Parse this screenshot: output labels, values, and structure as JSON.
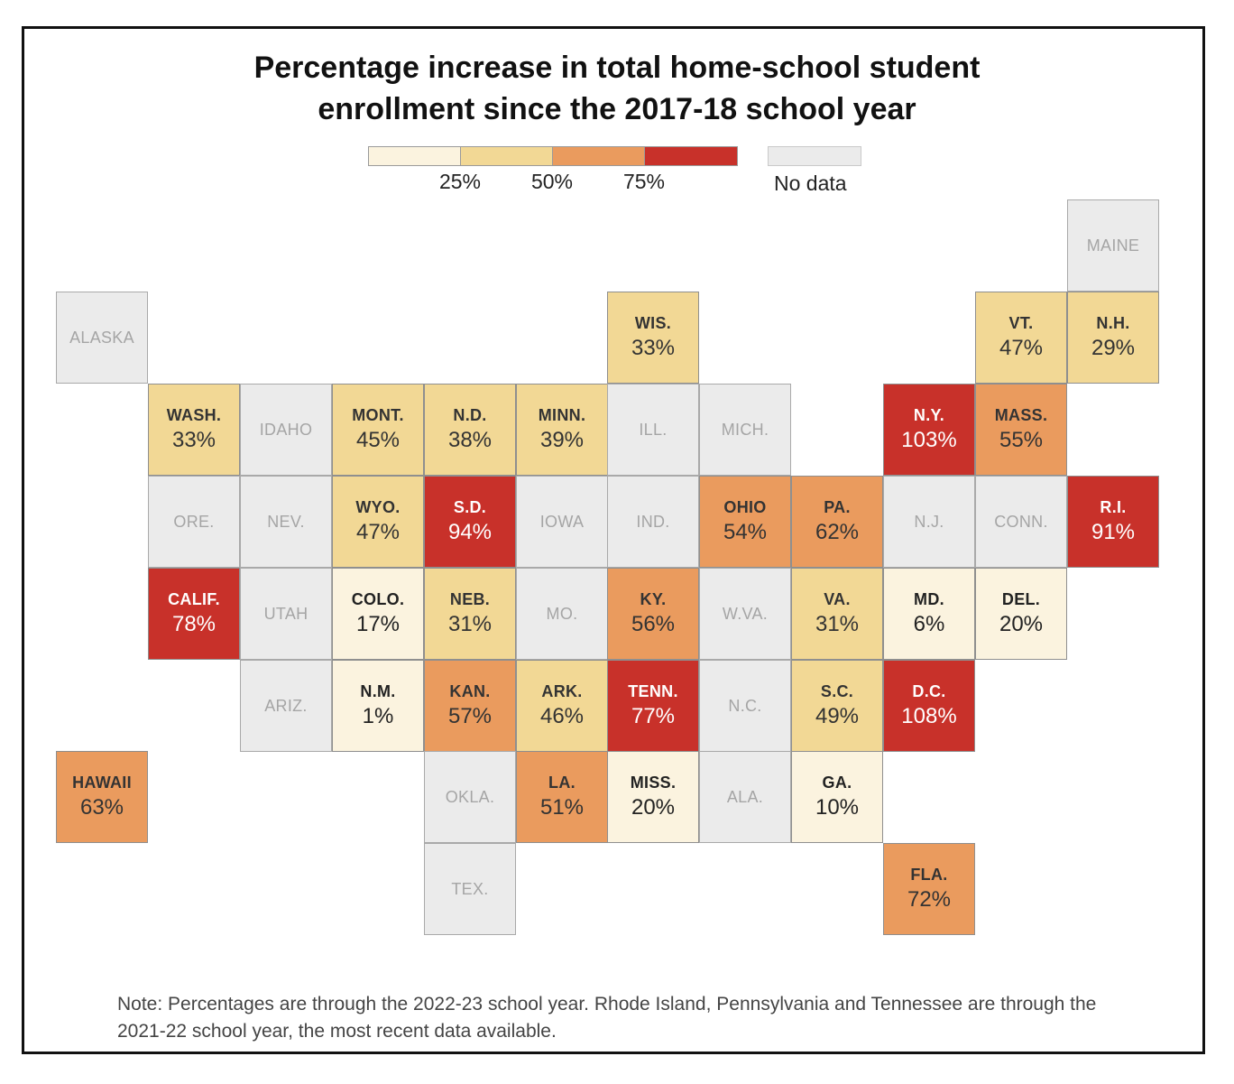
{
  "title_lines": [
    "Percentage increase in total home-school student",
    "enrollment since the 2017-18 school year"
  ],
  "legend": {
    "bins": [
      {
        "color": "#fbf3df"
      },
      {
        "color": "#f2d895"
      },
      {
        "color": "#ea9b5e"
      },
      {
        "color": "#c8312a"
      }
    ],
    "ticks": [
      "25%",
      "50%",
      "75%"
    ],
    "nodata_label": "No data",
    "nodata_color": "#ebebeb"
  },
  "states": [
    {
      "name": "ALASKA",
      "value": null,
      "col": 0,
      "row": 1
    },
    {
      "name": "MAINE",
      "value": null,
      "col": 11,
      "row": 0
    },
    {
      "name": "WIS.",
      "value": 33,
      "col": 6,
      "row": 1
    },
    {
      "name": "VT.",
      "value": 47,
      "col": 10,
      "row": 1
    },
    {
      "name": "N.H.",
      "value": 29,
      "col": 11,
      "row": 1
    },
    {
      "name": "WASH.",
      "value": 33,
      "col": 1,
      "row": 2
    },
    {
      "name": "IDAHO",
      "value": null,
      "col": 2,
      "row": 2
    },
    {
      "name": "MONT.",
      "value": 45,
      "col": 3,
      "row": 2
    },
    {
      "name": "N.D.",
      "value": 38,
      "col": 4,
      "row": 2
    },
    {
      "name": "MINN.",
      "value": 39,
      "col": 5,
      "row": 2
    },
    {
      "name": "ILL.",
      "value": null,
      "col": 6,
      "row": 2
    },
    {
      "name": "MICH.",
      "value": null,
      "col": 7,
      "row": 2
    },
    {
      "name": "N.Y.",
      "value": 103,
      "col": 9,
      "row": 2
    },
    {
      "name": "MASS.",
      "value": 55,
      "col": 10,
      "row": 2
    },
    {
      "name": "ORE.",
      "value": null,
      "col": 1,
      "row": 3
    },
    {
      "name": "NEV.",
      "value": null,
      "col": 2,
      "row": 3
    },
    {
      "name": "WYO.",
      "value": 47,
      "col": 3,
      "row": 3
    },
    {
      "name": "S.D.",
      "value": 94,
      "col": 4,
      "row": 3
    },
    {
      "name": "IOWA",
      "value": null,
      "col": 5,
      "row": 3
    },
    {
      "name": "IND.",
      "value": null,
      "col": 6,
      "row": 3
    },
    {
      "name": "OHIO",
      "value": 54,
      "col": 7,
      "row": 3
    },
    {
      "name": "PA.",
      "value": 62,
      "col": 8,
      "row": 3
    },
    {
      "name": "N.J.",
      "value": null,
      "col": 9,
      "row": 3
    },
    {
      "name": "CONN.",
      "value": null,
      "col": 10,
      "row": 3
    },
    {
      "name": "R.I.",
      "value": 91,
      "col": 11,
      "row": 3
    },
    {
      "name": "CALIF.",
      "value": 78,
      "col": 1,
      "row": 4
    },
    {
      "name": "UTAH",
      "value": null,
      "col": 2,
      "row": 4
    },
    {
      "name": "COLO.",
      "value": 17,
      "col": 3,
      "row": 4
    },
    {
      "name": "NEB.",
      "value": 31,
      "col": 4,
      "row": 4
    },
    {
      "name": "MO.",
      "value": null,
      "col": 5,
      "row": 4
    },
    {
      "name": "KY.",
      "value": 56,
      "col": 6,
      "row": 4
    },
    {
      "name": "W.VA.",
      "value": null,
      "col": 7,
      "row": 4
    },
    {
      "name": "VA.",
      "value": 31,
      "col": 8,
      "row": 4
    },
    {
      "name": "MD.",
      "value": 6,
      "col": 9,
      "row": 4
    },
    {
      "name": "DEL.",
      "value": 20,
      "col": 10,
      "row": 4
    },
    {
      "name": "ARIZ.",
      "value": null,
      "col": 2,
      "row": 5
    },
    {
      "name": "N.M.",
      "value": 1,
      "col": 3,
      "row": 5
    },
    {
      "name": "KAN.",
      "value": 57,
      "col": 4,
      "row": 5
    },
    {
      "name": "ARK.",
      "value": 46,
      "col": 5,
      "row": 5
    },
    {
      "name": "TENN.",
      "value": 77,
      "col": 6,
      "row": 5
    },
    {
      "name": "N.C.",
      "value": null,
      "col": 7,
      "row": 5
    },
    {
      "name": "S.C.",
      "value": 49,
      "col": 8,
      "row": 5
    },
    {
      "name": "D.C.",
      "value": 108,
      "col": 9,
      "row": 5
    },
    {
      "name": "HAWAII",
      "value": 63,
      "col": 0,
      "row": 6
    },
    {
      "name": "OKLA.",
      "value": null,
      "col": 4,
      "row": 6
    },
    {
      "name": "LA.",
      "value": 51,
      "col": 5,
      "row": 6
    },
    {
      "name": "MISS.",
      "value": 20,
      "col": 6,
      "row": 6
    },
    {
      "name": "ALA.",
      "value": null,
      "col": 7,
      "row": 6
    },
    {
      "name": "GA.",
      "value": 10,
      "col": 8,
      "row": 6
    },
    {
      "name": "TEX.",
      "value": null,
      "col": 4,
      "row": 7
    },
    {
      "name": "FLA.",
      "value": 72,
      "col": 9,
      "row": 7
    }
  ],
  "note": "Note: Percentages are through the 2022-23 school year. Rhode Island, Pennsylvania and Tennessee are through the 2021-22 school year, the most recent data available."
}
